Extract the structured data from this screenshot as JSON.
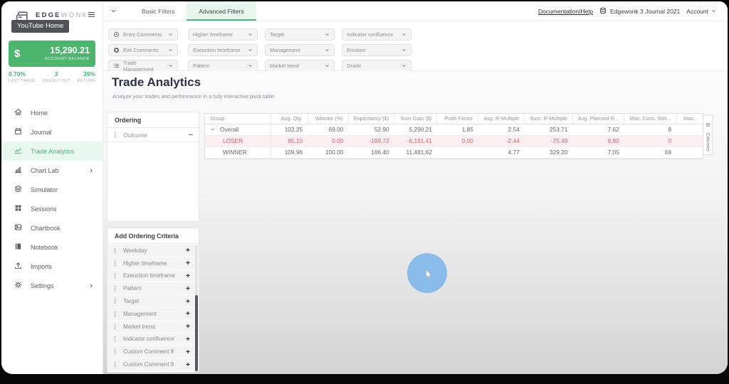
{
  "sidebar": {
    "logo": {
      "bold": "EDGE",
      "light": "WONK"
    },
    "tooltip": "YouTube Home",
    "balance": {
      "currency": "$",
      "amount": "15,290.21",
      "label": "ACCOUNT BALANCE"
    },
    "stats": [
      {
        "value": "0.70%",
        "label": "LAST TRADE"
      },
      {
        "value": "3",
        "label": "WEEKLY TILT"
      },
      {
        "value": "39%",
        "label": "RETURN"
      }
    ],
    "nav": [
      {
        "label": "Home",
        "icon": "home",
        "active": false,
        "chevron": false
      },
      {
        "label": "Journal",
        "icon": "calendar",
        "active": false,
        "chevron": false
      },
      {
        "label": "Trade Analytics",
        "icon": "chart-line",
        "active": true,
        "chevron": false
      },
      {
        "label": "Chart Lab",
        "icon": "chart-bar",
        "active": false,
        "chevron": true
      },
      {
        "label": "Simulator",
        "icon": "layers",
        "active": false,
        "chevron": false
      },
      {
        "label": "Sessions",
        "icon": "grid",
        "active": false,
        "chevron": false
      },
      {
        "label": "Chartbook",
        "icon": "image",
        "active": false,
        "chevron": false
      },
      {
        "label": "Notebook",
        "icon": "book",
        "active": false,
        "chevron": false
      },
      {
        "label": "Imports",
        "icon": "upload",
        "active": false,
        "chevron": false
      },
      {
        "label": "Settings",
        "icon": "gear",
        "active": false,
        "chevron": true
      }
    ]
  },
  "topbar": {
    "tabs": [
      {
        "label": "Basic Filters",
        "active": false
      },
      {
        "label": "Advanced Filters",
        "active": true
      }
    ],
    "documentation": "Documentation/Help",
    "journal": "Edgewonk 3 Journal 2021",
    "account": "Account"
  },
  "filters": {
    "pills": [
      {
        "label": "Entry Comments",
        "icon": "ring-dot",
        "row": 0,
        "col": 0
      },
      {
        "label": "Higher timeframe",
        "icon": "",
        "row": 0,
        "col": 1
      },
      {
        "label": "Target",
        "icon": "",
        "row": 0,
        "col": 2
      },
      {
        "label": "Indicator confluence",
        "icon": "",
        "row": 0,
        "col": 3
      },
      {
        "label": "Exit Comments",
        "icon": "ring-bold",
        "row": 1,
        "col": 0
      },
      {
        "label": "Exeuction timeframe",
        "icon": "",
        "row": 1,
        "col": 1
      },
      {
        "label": "Management",
        "icon": "",
        "row": 1,
        "col": 2
      },
      {
        "label": "Emotion",
        "icon": "",
        "row": 1,
        "col": 3
      },
      {
        "label": "Trade Management",
        "icon": "list",
        "row": 2,
        "col": 0
      },
      {
        "label": "Pattern",
        "icon": "",
        "row": 2,
        "col": 1
      },
      {
        "label": "Market trend",
        "icon": "",
        "row": 2,
        "col": 2
      },
      {
        "label": "Grade",
        "icon": "",
        "row": 2,
        "col": 3
      }
    ]
  },
  "page": {
    "title": "Trade Analytics",
    "subtitle": "Analyze your trades and performance in a fully interactive pivot table."
  },
  "ordering": {
    "title": "Ordering",
    "items": [
      {
        "label": "Outcome"
      }
    ]
  },
  "add_ordering": {
    "title": "Add Ordering Criteria",
    "items": [
      "Weekday",
      "Higher timeframe",
      "Exeuction timeframe",
      "Pattern",
      "Target",
      "Management",
      "Market trend",
      "Indicator confluence",
      "Custom Comment 8",
      "Custom Comment 9"
    ]
  },
  "pivot": {
    "columns_tab": "Columns",
    "headers": [
      "Group",
      "Avg. Qty.",
      "Winrate (%)",
      "Expectancy ($)",
      "Sum Gain ($)",
      "Profit Factor",
      "Avg. R-Multiple",
      "Sum. R-Multiple",
      "Avg. Planned R...",
      "Max. Cons. Win...",
      "Max..."
    ],
    "rows": [
      {
        "group": "Overall",
        "indent": 0,
        "expandable": true,
        "tone": "normal",
        "values": [
          "102.25",
          "69.00",
          "52.90",
          "5,290.21",
          "1.85",
          "2.54",
          "253.71",
          "7.62",
          "8",
          ""
        ]
      },
      {
        "group": "LOSER",
        "indent": 1,
        "expandable": false,
        "tone": "loser",
        "values": [
          "85.10",
          "0.00",
          "-199.72",
          "-6,191.41",
          "0.00",
          "-2.44",
          "-75.49",
          "8.90",
          "0",
          ""
        ]
      },
      {
        "group": "WINNER",
        "indent": 1,
        "expandable": false,
        "tone": "winner",
        "values": [
          "109.96",
          "100.00",
          "166.40",
          "11,481.62",
          "",
          "4.77",
          "329.20",
          "7.05",
          "69",
          ""
        ]
      }
    ]
  },
  "colors": {
    "accent": "#3cb878",
    "balance_green": "#4cb56e",
    "active_tab_bg": "#e7f6ec",
    "loser_text": "#d9626b",
    "loser_bg": "#fdeef1",
    "title_navy": "#2e3148"
  }
}
